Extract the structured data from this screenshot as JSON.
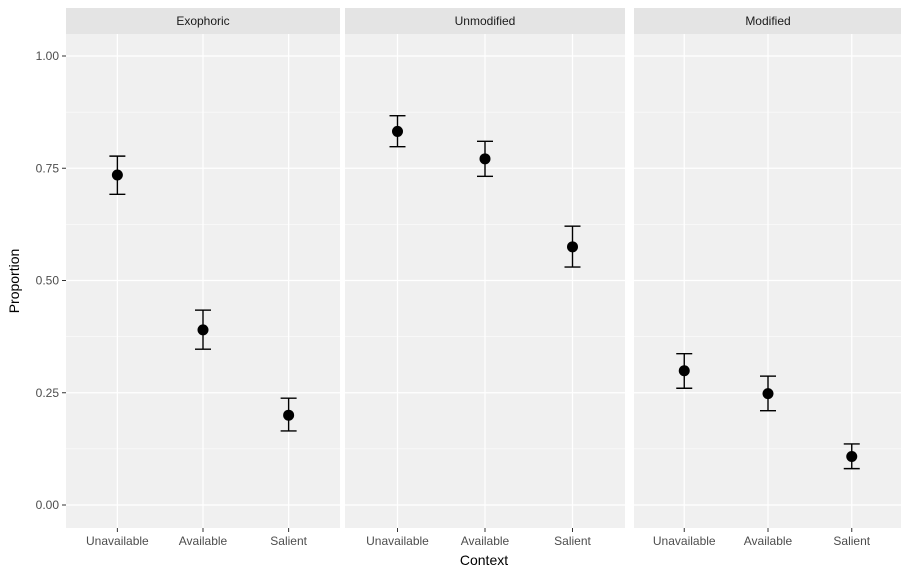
{
  "chart_data": {
    "type": "scatter",
    "subtype": "faceted point with error bars",
    "xlabel": "Context",
    "ylabel": "Proportion",
    "ylim": [
      0,
      1.05
    ],
    "yticks": [
      "0.00",
      "0.25",
      "0.50",
      "0.75",
      "1.00"
    ],
    "categories": [
      "Unavailable",
      "Available",
      "Salient"
    ],
    "grid": true,
    "legend": "none",
    "colors": {
      "panel_bg": "#f0f0f0",
      "strip_bg": "#e4e4e4",
      "grid_line": "#ffffff",
      "point": "#000000"
    },
    "facets": [
      {
        "name": "Exophoric",
        "points": [
          {
            "x": "Unavailable",
            "y": 0.735,
            "ymin": 0.692,
            "ymax": 0.777
          },
          {
            "x": "Available",
            "y": 0.39,
            "ymin": 0.347,
            "ymax": 0.434
          },
          {
            "x": "Salient",
            "y": 0.2,
            "ymin": 0.165,
            "ymax": 0.238
          }
        ]
      },
      {
        "name": "Unmodified",
        "points": [
          {
            "x": "Unavailable",
            "y": 0.832,
            "ymin": 0.798,
            "ymax": 0.867
          },
          {
            "x": "Available",
            "y": 0.771,
            "ymin": 0.732,
            "ymax": 0.81
          },
          {
            "x": "Salient",
            "y": 0.575,
            "ymin": 0.53,
            "ymax": 0.621
          }
        ]
      },
      {
        "name": "Modified",
        "points": [
          {
            "x": "Unavailable",
            "y": 0.299,
            "ymin": 0.26,
            "ymax": 0.337
          },
          {
            "x": "Available",
            "y": 0.248,
            "ymin": 0.21,
            "ymax": 0.287
          },
          {
            "x": "Salient",
            "y": 0.108,
            "ymin": 0.081,
            "ymax": 0.136
          }
        ]
      }
    ]
  }
}
